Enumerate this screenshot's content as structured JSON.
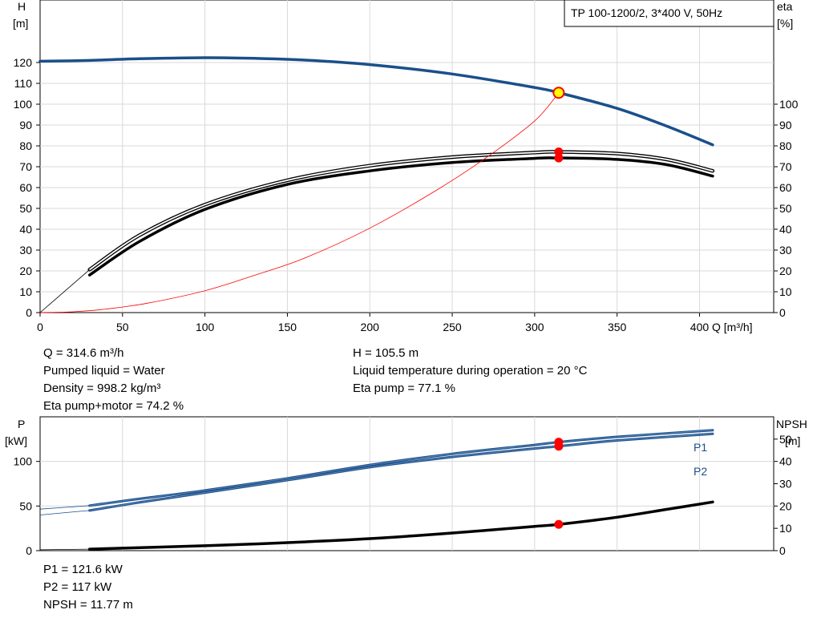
{
  "pump_label": "TP 100-1200/2, 3*400 V, 50Hz",
  "colors": {
    "head": "#1a4f8a",
    "eta": "#000000",
    "system": "#ff0000",
    "grid": "#d9d9d9",
    "point_fill": "#ffff00"
  },
  "info_top_left": [
    "Q = 314.6 m³/h",
    "Pumped liquid = Water",
    "Density = 998.2 kg/m³",
    "Eta pump+motor = 74.2 %"
  ],
  "info_top_right": [
    "H = 105.5 m",
    "Liquid temperature during operation = 20 °C",
    "Eta pump = 77.1 %"
  ],
  "info_bottom": [
    "P1 = 121.6 kW",
    "P2 = 117 kW",
    "NPSH = 11.77 m"
  ],
  "chart_data": [
    {
      "type": "line",
      "xlabel": "Q [m³/h]",
      "ylabel_left": [
        "H",
        "[m]"
      ],
      "ylabel_right": [
        "eta",
        "[%]"
      ],
      "xlim": [
        0,
        445
      ],
      "ylim_left": [
        0,
        150
      ],
      "ylim_right": [
        0,
        150
      ],
      "x_ticks": [
        0,
        50,
        100,
        150,
        200,
        250,
        300,
        350,
        400
      ],
      "y_ticks_left": [
        0,
        10,
        20,
        30,
        40,
        50,
        60,
        70,
        80,
        90,
        100,
        110,
        120
      ],
      "y_ticks_right": [
        0,
        10,
        20,
        30,
        40,
        50,
        60,
        70,
        80,
        90,
        100
      ],
      "grid": true,
      "series": [
        {
          "axis": "left",
          "role": "head",
          "x": [
            0,
            30,
            60,
            100,
            130,
            160,
            200,
            250,
            300,
            314.6,
            350,
            380,
            408
          ],
          "y": [
            120.6,
            121.0,
            121.8,
            122.3,
            122.0,
            121.2,
            119.0,
            114.5,
            108.0,
            105.5,
            98.0,
            89.5,
            80.5
          ]
        },
        {
          "axis": "right",
          "role": "eta-pump",
          "x": [
            30,
            60,
            100,
            150,
            200,
            250,
            300,
            314.6,
            350,
            380,
            408
          ],
          "y": [
            20.6,
            37.0,
            51.8,
            63.5,
            70.5,
            74.6,
            76.8,
            77.1,
            76.3,
            73.5,
            68.0
          ]
        },
        {
          "axis": "right",
          "role": "eta-pump-motor",
          "x": [
            30,
            60,
            100,
            150,
            200,
            250,
            300,
            314.6,
            350,
            380,
            408
          ],
          "y": [
            18.0,
            34.0,
            49.5,
            61.5,
            68.0,
            72.0,
            74.0,
            74.2,
            73.5,
            71.0,
            65.5
          ]
        },
        {
          "axis": "right",
          "role": "eta-extension",
          "x": [
            0,
            30
          ],
          "y": [
            0,
            20.6
          ]
        },
        {
          "axis": "left",
          "role": "system-curve",
          "x": [
            0,
            20,
            40,
            65,
            100,
            130,
            160,
            200,
            240,
            270,
            300,
            314.6
          ],
          "y": [
            0,
            0.4,
            1.7,
            4.5,
            10.5,
            17.9,
            26.0,
            40.5,
            58.5,
            74.0,
            92.0,
            105.5
          ]
        }
      ],
      "operating_points": [
        {
          "axis": "left",
          "x": 314.6,
          "y": 105.5,
          "kind": "duty"
        },
        {
          "axis": "right",
          "x": 314.6,
          "y": 77.1,
          "kind": "eta"
        },
        {
          "axis": "right",
          "x": 314.6,
          "y": 74.2,
          "kind": "eta"
        }
      ]
    },
    {
      "type": "line",
      "ylabel_left": [
        "P",
        "[kW]"
      ],
      "ylabel_right": [
        "NPSH",
        "[m]"
      ],
      "xlim": [
        0,
        445
      ],
      "ylim_left": [
        0,
        150
      ],
      "ylim_right": [
        0,
        60
      ],
      "x_ticks": [
        0,
        50,
        100,
        150,
        200,
        250,
        300,
        350,
        400
      ],
      "y_ticks_left": [
        0,
        50,
        100
      ],
      "y_ticks_right": [
        0,
        10,
        20,
        30,
        40,
        50
      ],
      "grid": true,
      "series": [
        {
          "name": "P1",
          "axis": "left",
          "x": [
            30,
            60,
            100,
            150,
            200,
            250,
            300,
            314.6,
            350,
            408
          ],
          "y": [
            50.5,
            58.0,
            67.5,
            81.0,
            96.0,
            108.5,
            118.5,
            121.6,
            127.5,
            135.0
          ]
        },
        {
          "name": "P2",
          "axis": "left",
          "x": [
            30,
            60,
            100,
            150,
            200,
            250,
            300,
            314.6,
            350,
            408
          ],
          "y": [
            45.0,
            54.0,
            65.0,
            79.0,
            93.5,
            105.0,
            114.5,
            117.0,
            123.5,
            131.0
          ]
        },
        {
          "role": "p1-extension",
          "axis": "left",
          "x": [
            0,
            30
          ],
          "y": [
            46.5,
            50.5
          ]
        },
        {
          "role": "p2-extension",
          "axis": "left",
          "x": [
            0,
            30
          ],
          "y": [
            40.0,
            45.0
          ]
        },
        {
          "role": "npsh",
          "axis": "right",
          "x": [
            30,
            100,
            150,
            200,
            250,
            300,
            314.6,
            350,
            380,
            408
          ],
          "y": [
            0.7,
            2.2,
            3.6,
            5.4,
            7.9,
            10.9,
            11.77,
            15.0,
            18.5,
            21.8
          ]
        },
        {
          "role": "npsh-extension",
          "axis": "right",
          "x": [
            0,
            30
          ],
          "y": [
            0.4,
            0.7
          ]
        }
      ],
      "operating_points": [
        {
          "axis": "left",
          "x": 314.6,
          "y": 121.6
        },
        {
          "axis": "left",
          "x": 314.6,
          "y": 117.0
        },
        {
          "axis": "right",
          "x": 314.6,
          "y": 11.77
        }
      ],
      "series_labels": [
        "P1",
        "P2"
      ]
    }
  ]
}
